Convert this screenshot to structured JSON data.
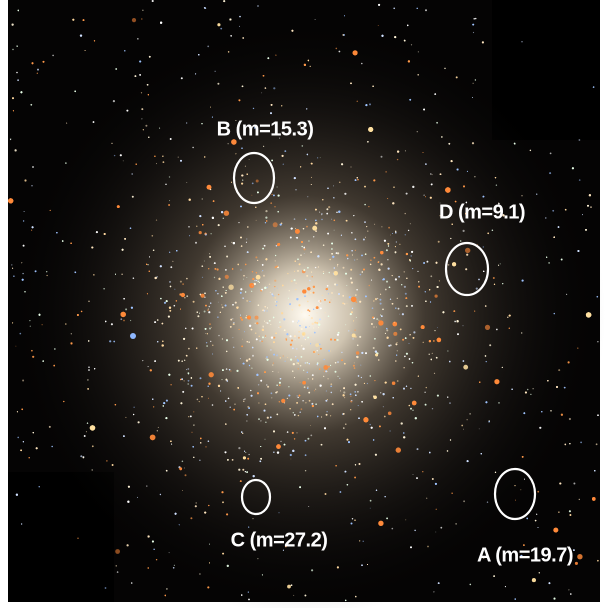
{
  "annotations": [
    {
      "label": "B (m=15.3)"
    },
    {
      "label": "D (m=9.1)"
    },
    {
      "label": "C (m=27.2)"
    },
    {
      "label": "A (m=19.7)"
    }
  ]
}
